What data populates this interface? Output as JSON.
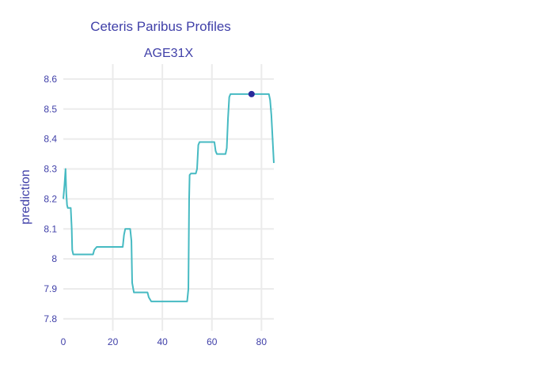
{
  "chart_data": {
    "type": "line",
    "title": "Ceteris Paribus Profiles",
    "subtitle": "AGE31X",
    "xlabel": "",
    "ylabel": "prediction",
    "xlim": [
      0,
      85
    ],
    "ylim": [
      7.76,
      8.65
    ],
    "x_ticks": [
      0,
      20,
      40,
      60,
      80
    ],
    "y_ticks": [
      7.8,
      7.9,
      8.0,
      8.1,
      8.2,
      8.3,
      8.4,
      8.5,
      8.6
    ],
    "x_tick_labels": [
      "0",
      "20",
      "40",
      "60",
      "80"
    ],
    "y_tick_labels": [
      "7.8",
      "7.9",
      "8",
      "8.1",
      "8.2",
      "8.3",
      "8.4",
      "8.5",
      "8.6"
    ],
    "grid": true,
    "series": [
      {
        "color": "#46bac2",
        "x": [
          0,
          0.5,
          0.9,
          1.2,
          1.5,
          1.8,
          2.2,
          3.0,
          3.4,
          3.6,
          4.0,
          5.0,
          12,
          12.5,
          13.5,
          24,
          24.5,
          25,
          27,
          27.5,
          27.8,
          28.5,
          34,
          34.5,
          35.5,
          50,
          50.5,
          50.8,
          51,
          51.5,
          53.5,
          54,
          54.5,
          55,
          61,
          61.5,
          62,
          65.5,
          66,
          66.5,
          67,
          67.5,
          83,
          83.5,
          84,
          84.5,
          85
        ],
        "y": [
          8.2,
          8.25,
          8.3,
          8.22,
          8.18,
          8.17,
          8.17,
          8.17,
          8.1,
          8.03,
          8.015,
          8.015,
          8.015,
          8.03,
          8.04,
          8.04,
          8.08,
          8.1,
          8.1,
          8.06,
          7.92,
          7.888,
          7.888,
          7.872,
          7.858,
          7.858,
          7.9,
          8.2,
          8.28,
          8.285,
          8.285,
          8.3,
          8.38,
          8.39,
          8.39,
          8.36,
          8.35,
          8.35,
          8.37,
          8.47,
          8.54,
          8.55,
          8.55,
          8.53,
          8.48,
          8.4,
          8.32
        ]
      }
    ],
    "observation": {
      "x": 76,
      "y": 8.55,
      "color": "#2a2a9b"
    }
  }
}
